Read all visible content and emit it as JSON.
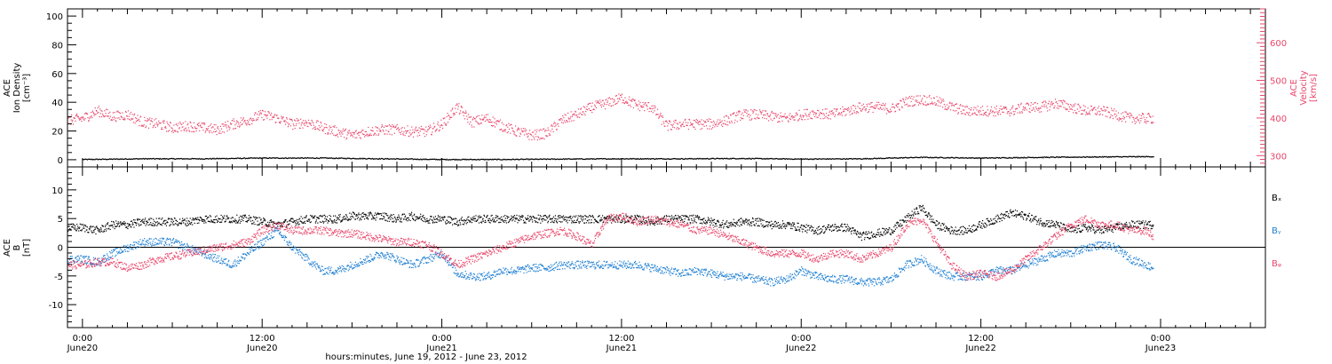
{
  "colors": {
    "black": "#000000",
    "pink": "#e8466a",
    "blue": "#1e7fd2"
  },
  "x_axis": {
    "title": "hours:minutes, June 19, 2012 - June 23, 2012",
    "range_hours": [
      -1,
      79
    ],
    "ticks": [
      {
        "h": 0,
        "time": "0:00",
        "date": "June20"
      },
      {
        "h": 12,
        "time": "12:00",
        "date": "June20"
      },
      {
        "h": 24,
        "time": "0:00",
        "date": "June21"
      },
      {
        "h": 36,
        "time": "12:00",
        "date": "June21"
      },
      {
        "h": 48,
        "time": "0:00",
        "date": "June22"
      },
      {
        "h": 60,
        "time": "12:00",
        "date": "June22"
      },
      {
        "h": 72,
        "time": "0:00",
        "date": "June23"
      }
    ]
  },
  "chart_data": [
    {
      "type": "scatter",
      "ylabel_lines": [
        "ACE",
        "Ion Density",
        "[cm⁻³]"
      ],
      "y2label_lines": [
        "ACE",
        "Velocity",
        "[km/s]"
      ],
      "ylim": [
        -5,
        105
      ],
      "yticks": [
        0,
        20,
        40,
        60,
        80,
        100
      ],
      "y2lim": [
        270,
        690
      ],
      "y2ticks": [
        300,
        400,
        500,
        600
      ],
      "series": [
        {
          "color": "#000000",
          "axis": "left",
          "x": [
            0,
            4,
            8,
            12,
            16,
            20,
            24,
            28,
            32,
            36,
            40,
            44,
            48,
            52,
            56,
            60,
            64,
            68,
            71.5
          ],
          "y": [
            0.5,
            1,
            1,
            1.5,
            1.5,
            1,
            0.5,
            0.5,
            0.8,
            1,
            1,
            1.2,
            0.8,
            1,
            2,
            1.5,
            2,
            2.3,
            2.5
          ]
        },
        {
          "color": "#e8466a",
          "axis": "right",
          "x": [
            -1,
            0,
            1,
            2,
            3,
            4,
            5,
            6,
            7,
            8,
            9,
            10,
            11,
            12,
            13,
            14,
            15,
            16,
            17,
            18,
            19,
            20,
            21,
            22,
            23,
            24,
            25,
            26,
            27,
            28,
            29,
            30,
            31,
            32,
            33,
            34,
            35,
            36,
            37,
            38,
            39,
            40,
            41,
            42,
            43,
            44,
            45,
            46,
            47,
            48,
            49,
            50,
            51,
            52,
            53,
            54,
            55,
            56,
            57,
            58,
            59,
            60,
            61,
            62,
            63,
            64,
            65,
            66,
            67,
            68,
            69,
            70,
            71,
            71.5
          ],
          "y": [
            395,
            400,
            420,
            405,
            410,
            390,
            385,
            375,
            380,
            375,
            370,
            385,
            395,
            410,
            400,
            385,
            390,
            375,
            365,
            355,
            365,
            370,
            370,
            365,
            365,
            385,
            430,
            390,
            400,
            380,
            365,
            355,
            360,
            395,
            410,
            430,
            440,
            455,
            435,
            430,
            380,
            385,
            385,
            385,
            395,
            410,
            410,
            405,
            400,
            410,
            415,
            410,
            420,
            430,
            430,
            425,
            445,
            450,
            445,
            430,
            420,
            420,
            420,
            420,
            430,
            430,
            440,
            430,
            420,
            420,
            410,
            400,
            400,
            400
          ]
        }
      ]
    },
    {
      "type": "scatter",
      "ylabel_lines": [
        "ACE",
        "B",
        "[nT]"
      ],
      "ylim": [
        -14,
        14
      ],
      "yticks": [
        -10,
        -5,
        0,
        5,
        10
      ],
      "legend": [
        "Bₓ",
        "Bᵧ",
        "Bᵩ"
      ],
      "series": [
        {
          "color": "#000000",
          "x": [
            -1,
            0,
            1,
            2,
            3,
            4,
            5,
            6,
            7,
            8,
            9,
            10,
            11,
            12,
            13,
            14,
            15,
            16,
            17,
            18,
            19,
            20,
            21,
            22,
            23,
            24,
            25,
            26,
            27,
            28,
            29,
            30,
            31,
            32,
            33,
            34,
            35,
            36,
            37,
            38,
            39,
            40,
            41,
            42,
            43,
            44,
            45,
            46,
            47,
            48,
            49,
            50,
            51,
            52,
            53,
            54,
            55,
            56,
            57,
            58,
            59,
            60,
            61,
            62,
            63,
            64,
            65,
            66,
            67,
            68,
            69,
            70,
            71,
            71.5
          ],
          "y": [
            3.5,
            3.5,
            3,
            4,
            4,
            4.5,
            4.5,
            4.5,
            4.5,
            5,
            5,
            5,
            5,
            4.5,
            4,
            4.5,
            5,
            5,
            5,
            5.5,
            5.5,
            5.5,
            5,
            5.5,
            5,
            5,
            4.5,
            5,
            5,
            5,
            5,
            5,
            5,
            5,
            5,
            5,
            5,
            5,
            5,
            4.5,
            5,
            5,
            5,
            4.5,
            4,
            4.5,
            4.5,
            4,
            4,
            3.5,
            3,
            3.5,
            3.5,
            2,
            2.5,
            3,
            5,
            7,
            4,
            3,
            3,
            4,
            5,
            6,
            5.5,
            4.5,
            4,
            3,
            3.5,
            3,
            3.5,
            4,
            4,
            4
          ]
        },
        {
          "color": "#1e7fd2",
          "x": [
            -1,
            0,
            1,
            2,
            3,
            4,
            5,
            6,
            7,
            8,
            9,
            10,
            11,
            12,
            13,
            14,
            15,
            16,
            17,
            18,
            19,
            20,
            21,
            22,
            23,
            24,
            25,
            26,
            27,
            28,
            29,
            30,
            31,
            32,
            33,
            34,
            35,
            36,
            37,
            38,
            39,
            40,
            41,
            42,
            43,
            44,
            45,
            46,
            47,
            48,
            49,
            50,
            51,
            52,
            53,
            54,
            55,
            56,
            57,
            58,
            59,
            60,
            61,
            62,
            63,
            64,
            65,
            66,
            67,
            68,
            69,
            70,
            71,
            71.5
          ],
          "y": [
            -2,
            -2,
            -2.5,
            -1,
            0,
            1,
            1,
            1,
            0,
            -1,
            -2,
            -3,
            -1,
            1,
            3,
            0,
            -2,
            -4,
            -4,
            -3,
            -2,
            -1,
            -2,
            -3,
            -2,
            -1,
            -4.5,
            -5,
            -5,
            -4,
            -4,
            -3.5,
            -3.5,
            -3,
            -3,
            -3,
            -3,
            -3,
            -3,
            -3.5,
            -4,
            -4.5,
            -4,
            -4.5,
            -5,
            -5,
            -5.5,
            -6,
            -5.5,
            -4,
            -5,
            -5.5,
            -5.5,
            -6,
            -6,
            -5.5,
            -3,
            -2,
            -4,
            -5,
            -5,
            -5,
            -4,
            -4,
            -3,
            -2,
            -1,
            -1,
            0,
            0.5,
            0,
            -2,
            -3,
            -3.5
          ]
        },
        {
          "color": "#e8466a",
          "x": [
            -1,
            0,
            1,
            2,
            3,
            4,
            5,
            6,
            7,
            8,
            9,
            10,
            11,
            12,
            13,
            14,
            15,
            16,
            17,
            18,
            19,
            20,
            21,
            22,
            23,
            24,
            25,
            26,
            27,
            28,
            29,
            30,
            31,
            32,
            33,
            34,
            35,
            36,
            37,
            38,
            39,
            40,
            41,
            42,
            43,
            44,
            45,
            46,
            47,
            48,
            49,
            50,
            51,
            52,
            53,
            54,
            55,
            56,
            57,
            58,
            59,
            60,
            61,
            62,
            63,
            64,
            65,
            66,
            67,
            68,
            69,
            70,
            71,
            71.5
          ],
          "y": [
            -3,
            -3,
            -2.5,
            -2.5,
            -3.5,
            -3,
            -2,
            -1.5,
            -1,
            -0.5,
            0,
            0.5,
            1,
            3,
            4,
            3,
            3,
            3,
            2.5,
            2.5,
            2,
            1.5,
            1,
            1,
            0.5,
            -1,
            -3,
            -2,
            -1,
            0,
            1,
            2,
            2.5,
            3,
            2,
            0.5,
            5,
            5.5,
            4.5,
            5,
            4.5,
            4,
            3,
            3,
            2,
            1,
            0,
            -1,
            -1,
            -1,
            -2,
            -1,
            -1,
            -2,
            -1,
            0,
            4,
            5,
            1,
            -3,
            -5,
            -4.5,
            -5,
            -4,
            -2,
            0,
            2,
            4,
            5,
            4,
            4,
            3,
            3,
            2
          ]
        }
      ]
    }
  ]
}
